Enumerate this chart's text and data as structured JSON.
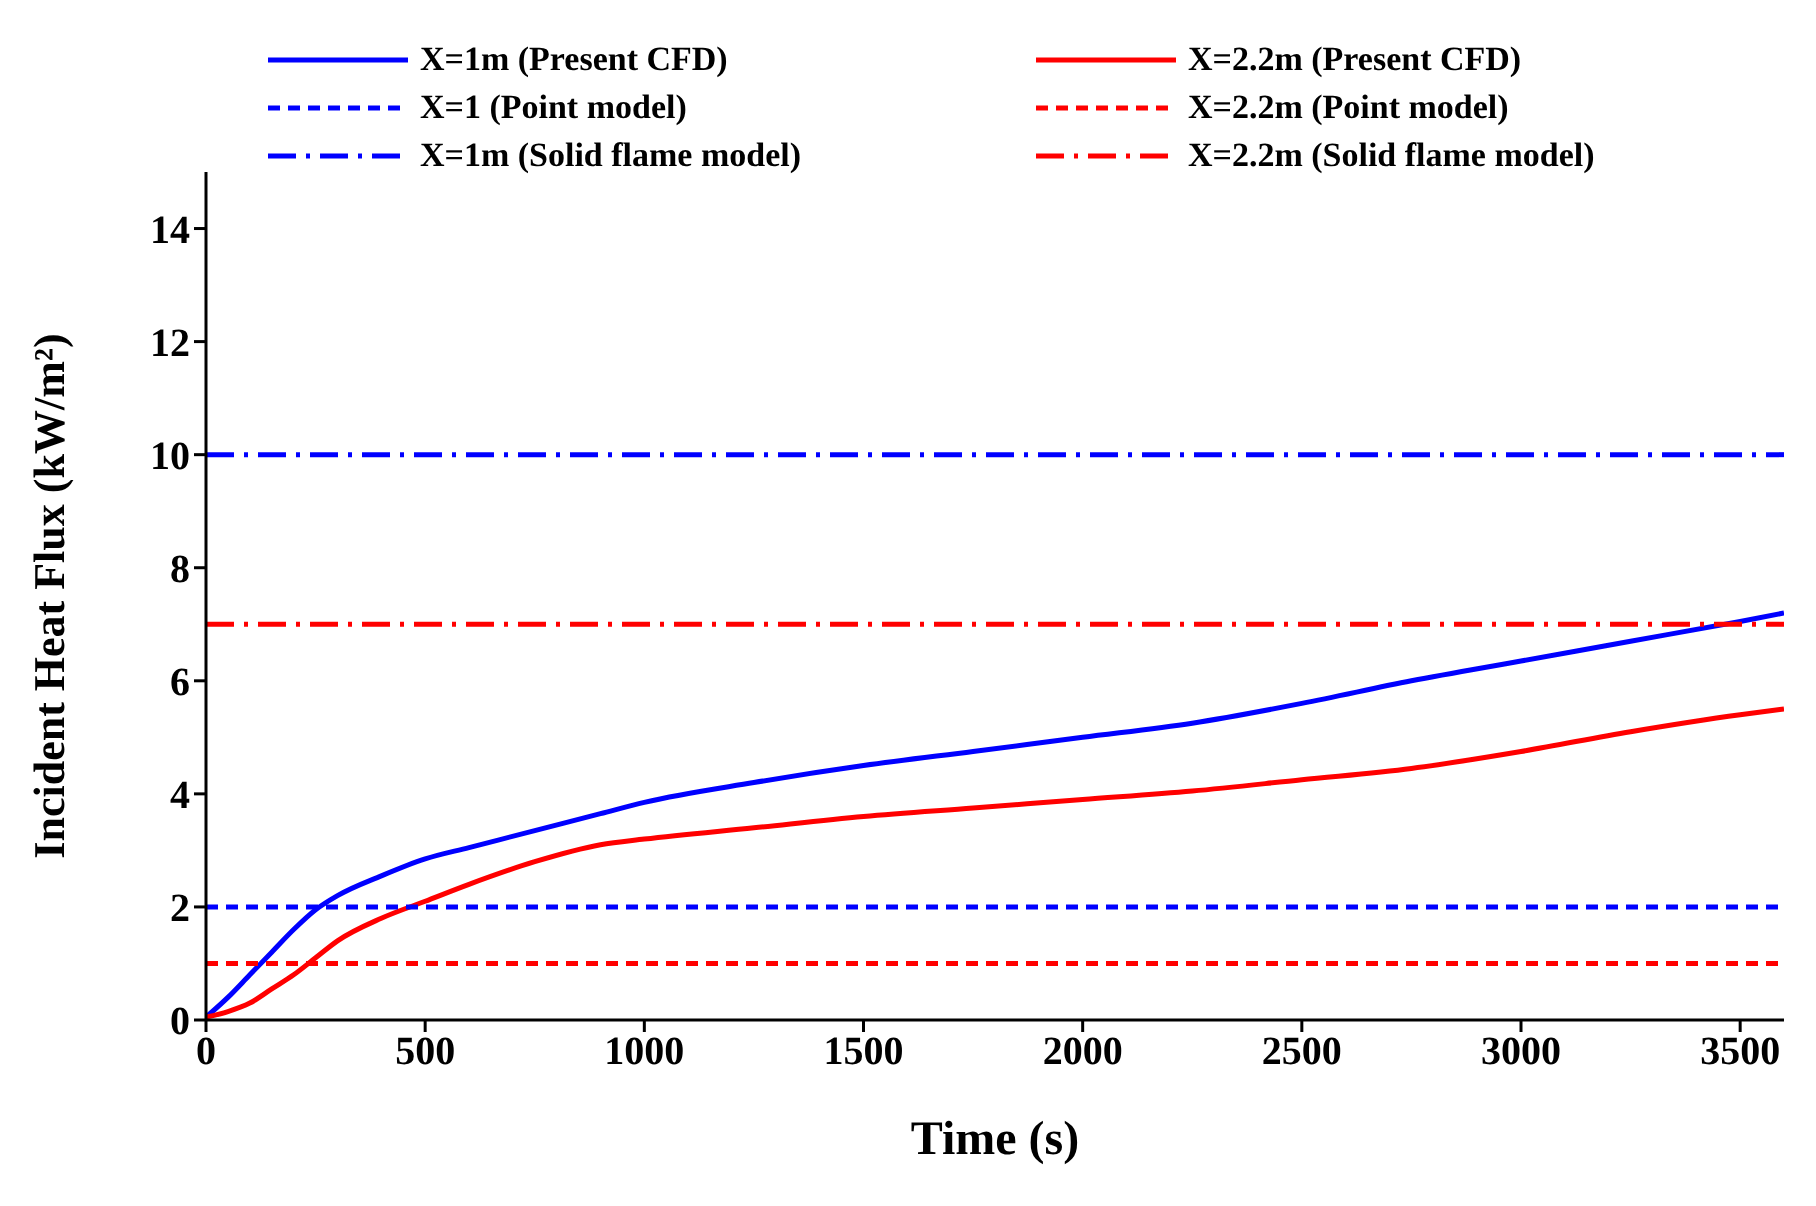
{
  "chart_data": {
    "type": "line",
    "xlabel": "Time (s)",
    "ylabel": "Incident Heat Flux (kW/m²)",
    "xlim": [
      0,
      3600
    ],
    "xticks": [
      0,
      500,
      1000,
      1500,
      2000,
      2500,
      3000,
      3500
    ],
    "ylim": [
      0,
      15
    ],
    "yticks": [
      0,
      2,
      4,
      6,
      8,
      10,
      12,
      14
    ],
    "grid": false,
    "legend": "top",
    "marker": "none",
    "series": [
      {
        "name": "X=1m (Present CFD)",
        "color": "#0000ff",
        "line_style": "solid",
        "x": [
          0,
          50,
          100,
          150,
          200,
          250,
          300,
          400,
          500,
          600,
          750,
          900,
          1000,
          1250,
          1500,
          1750,
          2000,
          2250,
          2500,
          2750,
          3000,
          3250,
          3500,
          3600
        ],
        "values": [
          0.05,
          0.4,
          0.8,
          1.2,
          1.6,
          1.95,
          2.2,
          2.55,
          2.85,
          3.05,
          3.35,
          3.65,
          3.85,
          4.2,
          4.5,
          4.75,
          5.0,
          5.25,
          5.6,
          6.0,
          6.35,
          6.7,
          7.05,
          7.2
        ]
      },
      {
        "name": "X=2.2m (Present CFD)",
        "color": "#ff0000",
        "line_style": "solid",
        "x": [
          0,
          50,
          100,
          150,
          200,
          250,
          300,
          400,
          500,
          600,
          750,
          900,
          1000,
          1250,
          1500,
          1750,
          2000,
          2250,
          2500,
          2750,
          3000,
          3250,
          3500,
          3600
        ],
        "values": [
          0.05,
          0.15,
          0.3,
          0.55,
          0.8,
          1.1,
          1.4,
          1.8,
          2.1,
          2.4,
          2.8,
          3.1,
          3.2,
          3.4,
          3.6,
          3.75,
          3.9,
          4.05,
          4.25,
          4.45,
          4.75,
          5.1,
          5.4,
          5.5
        ]
      },
      {
        "name": "X=1 (Point model)",
        "color": "#0000ff",
        "line_style": "dashed",
        "x": [
          0,
          3600
        ],
        "values": [
          2,
          2
        ]
      },
      {
        "name": "X=2.2m (Point model)",
        "color": "#ff0000",
        "line_style": "dashed",
        "x": [
          0,
          3600
        ],
        "values": [
          1,
          1
        ]
      },
      {
        "name": "X=1m (Solid flame model)",
        "color": "#0000ff",
        "line_style": "dashdot",
        "x": [
          0,
          3600
        ],
        "values": [
          10,
          10
        ]
      },
      {
        "name": "X=2.2m (Solid flame model)",
        "color": "#ff0000",
        "line_style": "dashdot",
        "x": [
          0,
          3600
        ],
        "values": [
          7,
          7
        ]
      }
    ]
  }
}
